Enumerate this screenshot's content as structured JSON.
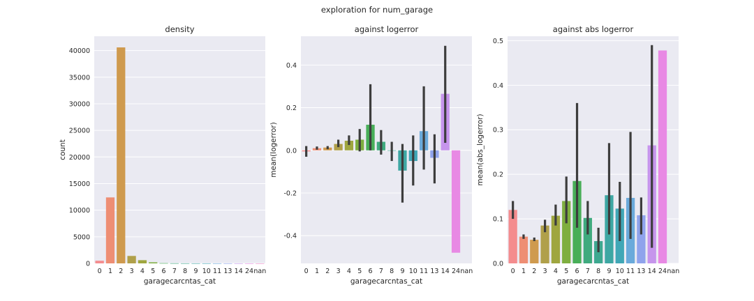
{
  "figure_title": "exploration for num_garage",
  "chart_data": [
    {
      "type": "bar",
      "title": "density",
      "xlabel": "garagecarcntas_cat",
      "ylabel": "count",
      "categories": [
        "0",
        "1",
        "2",
        "3",
        "4",
        "5",
        "6",
        "7",
        "8",
        "9",
        "10",
        "11",
        "13",
        "14",
        "24",
        "nan"
      ],
      "values": [
        500,
        12400,
        40600,
        1400,
        600,
        200,
        40,
        20,
        10,
        10,
        10,
        5,
        5,
        3,
        1,
        0
      ],
      "ylim": [
        0,
        42700
      ],
      "yticks": [
        0,
        5000,
        10000,
        15000,
        20000,
        25000,
        30000,
        35000,
        40000
      ],
      "ytick_labels": [
        "0",
        "5000",
        "10000",
        "15000",
        "20000",
        "25000",
        "30000",
        "35000",
        "40000"
      ],
      "grid": true
    },
    {
      "type": "bar",
      "title": "against logerror",
      "xlabel": "garagecarcntas_cat",
      "ylabel": "mean(logerror)",
      "categories": [
        "0",
        "1",
        "2",
        "3",
        "4",
        "5",
        "6",
        "7",
        "8",
        "9",
        "10",
        "11",
        "13",
        "14",
        "24",
        "nan"
      ],
      "values": [
        -0.005,
        0.01,
        0.013,
        0.03,
        0.045,
        0.05,
        0.12,
        0.04,
        0.0,
        -0.095,
        -0.05,
        0.09,
        -0.035,
        0.265,
        -0.48,
        null
      ],
      "error_low": [
        -0.03,
        0.003,
        0.005,
        0.015,
        0.025,
        -0.005,
        0.0,
        -0.02,
        -0.05,
        -0.245,
        -0.165,
        -0.09,
        -0.155,
        0.035,
        null,
        null
      ],
      "error_high": [
        0.02,
        0.018,
        0.02,
        0.05,
        0.07,
        0.1,
        0.31,
        0.095,
        0.04,
        0.03,
        0.07,
        0.3,
        0.075,
        0.49,
        null,
        null
      ],
      "ylim": [
        -0.53,
        0.535
      ],
      "yticks": [
        -0.4,
        -0.2,
        0.0,
        0.2,
        0.4
      ],
      "ytick_labels": [
        "-0.4",
        "-0.2",
        "0.0",
        "0.2",
        "0.4"
      ],
      "grid": true
    },
    {
      "type": "bar",
      "title": "against abs logerror",
      "xlabel": "garagecarcntas_cat",
      "ylabel": "mean(abs_logerror)",
      "categories": [
        "0",
        "1",
        "2",
        "3",
        "4",
        "5",
        "6",
        "7",
        "8",
        "9",
        "10",
        "11",
        "13",
        "14",
        "24",
        "nan"
      ],
      "values": [
        0.12,
        0.06,
        0.053,
        0.085,
        0.107,
        0.14,
        0.185,
        0.102,
        0.05,
        0.153,
        0.123,
        0.147,
        0.108,
        0.265,
        0.478,
        null
      ],
      "error_low": [
        0.1,
        0.055,
        0.05,
        0.07,
        0.085,
        0.09,
        0.08,
        0.065,
        0.025,
        0.065,
        0.05,
        0.055,
        0.065,
        0.035,
        null,
        null
      ],
      "error_high": [
        0.14,
        0.065,
        0.058,
        0.098,
        0.132,
        0.195,
        0.36,
        0.14,
        0.08,
        0.27,
        0.183,
        0.295,
        0.148,
        0.49,
        null,
        null
      ],
      "ylim": [
        0,
        0.51
      ],
      "yticks": [
        0.0,
        0.1,
        0.2,
        0.3,
        0.4,
        0.5
      ],
      "ytick_labels": [
        "0.0",
        "0.1",
        "0.2",
        "0.3",
        "0.4",
        "0.5"
      ],
      "grid": true
    }
  ],
  "colors": {
    "background": "#EAEAF2",
    "grid": "#FFFFFF",
    "errorbar": "#3D3D3D",
    "palette": [
      "#F48C8E",
      "#EE8E74",
      "#CF9A4E",
      "#B0A04A",
      "#9FA63F",
      "#7EAE3F",
      "#48AE58",
      "#3FAA7E",
      "#3DA890",
      "#3DA7A3",
      "#40A7B6",
      "#6AAADB",
      "#8FA3EC",
      "#C695EC",
      "#E889E4",
      "#EF89C8"
    ]
  }
}
